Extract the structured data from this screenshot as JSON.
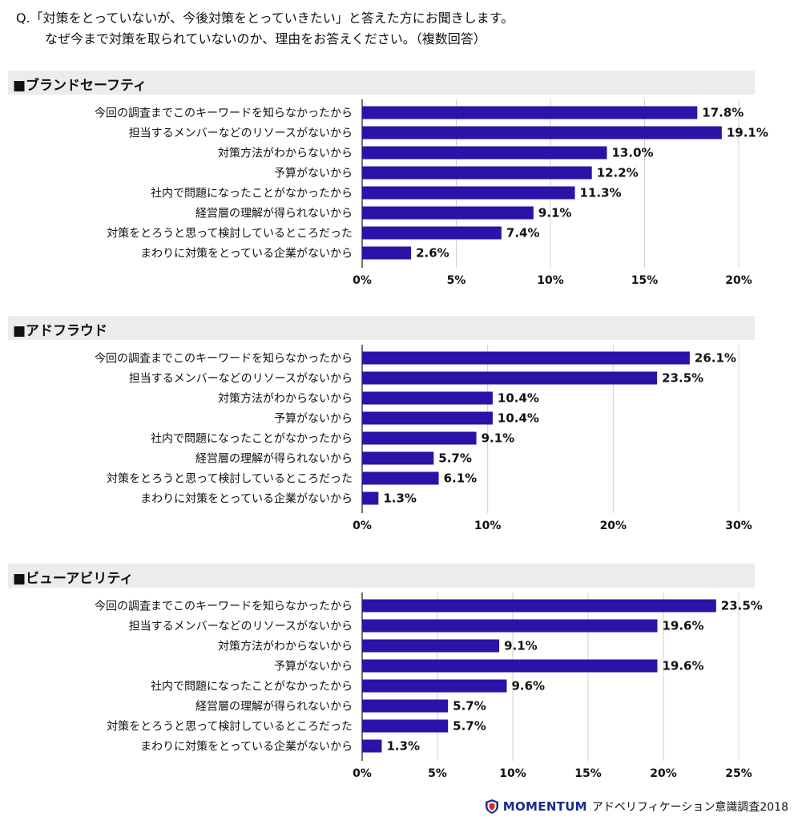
{
  "question": {
    "line1": "Q.「対策をとっていないが、今後対策をとっていきたい」と答えた方にお聞きします。",
    "line2": "なぜ今まで対策を取られていないのか、理由をお答えください。（複数回答）"
  },
  "footer": {
    "brand": "MOMENTUM",
    "text": "アドベリフィケーション意識調査2018",
    "logo_icon": "shield-icon"
  },
  "colors": {
    "bar": "#2a14a8",
    "grid": "#cfcfcf",
    "header_bg": "#ececec"
  },
  "chart_data": [
    {
      "type": "bar",
      "orientation": "horizontal",
      "title": "■ブランドセーフティ",
      "categories": [
        "今回の調査までこのキーワードを知らなかったから",
        "担当するメンバーなどのリソースがないから",
        "対策方法がわからないから",
        "予算がないから",
        "社内で問題になったことがなかったから",
        "経営層の理解が得られないから",
        "対策をとろうと思って検討しているところだった",
        "まわりに対策をとっている企業がないから"
      ],
      "values": [
        17.8,
        19.1,
        13.0,
        12.2,
        11.3,
        9.1,
        7.4,
        2.6
      ],
      "value_labels": [
        "17.8%",
        "19.1%",
        "13.0%",
        "12.2%",
        "11.3%",
        "9.1%",
        "7.4%",
        "2.6%"
      ],
      "xlim": [
        0,
        20
      ],
      "xticks": [
        0,
        5,
        10,
        15,
        20
      ],
      "xtick_labels": [
        "0%",
        "5%",
        "10%",
        "15%",
        "20%"
      ],
      "grid": true
    },
    {
      "type": "bar",
      "orientation": "horizontal",
      "title": "■アドフラウド",
      "categories": [
        "今回の調査までこのキーワードを知らなかったから",
        "担当するメンバーなどのリソースがないから",
        "対策方法がわからないから",
        "予算がないから",
        "社内で問題になったことがなかったから",
        "経営層の理解が得られないから",
        "対策をとろうと思って検討しているところだった",
        "まわりに対策をとっている企業がないから"
      ],
      "values": [
        26.1,
        23.5,
        10.4,
        10.4,
        9.1,
        5.7,
        6.1,
        1.3
      ],
      "value_labels": [
        "26.1%",
        "23.5%",
        "10.4%",
        "10.4%",
        "9.1%",
        "5.7%",
        "6.1%",
        "1.3%"
      ],
      "xlim": [
        0,
        30
      ],
      "xticks": [
        0,
        10,
        20,
        30
      ],
      "xtick_labels": [
        "0%",
        "10%",
        "20%",
        "30%"
      ],
      "grid": true
    },
    {
      "type": "bar",
      "orientation": "horizontal",
      "title": "■ビューアビリティ",
      "categories": [
        "今回の調査までこのキーワードを知らなかったから",
        "担当するメンバーなどのリソースがないから",
        "対策方法がわからないから",
        "予算がないから",
        "社内で問題になったことがなかったから",
        "経営層の理解が得られないから",
        "対策をとろうと思って検討しているところだった",
        "まわりに対策をとっている企業がないから"
      ],
      "values": [
        23.5,
        19.6,
        9.1,
        19.6,
        9.6,
        5.7,
        5.7,
        1.3
      ],
      "value_labels": [
        "23.5%",
        "19.6%",
        "9.1%",
        "19.6%",
        "9.6%",
        "5.7%",
        "5.7%",
        "1.3%"
      ],
      "xlim": [
        0,
        25
      ],
      "xticks": [
        0,
        5,
        10,
        15,
        20,
        25
      ],
      "xtick_labels": [
        "0%",
        "5%",
        "10%",
        "15%",
        "20%",
        "25%"
      ],
      "grid": true
    }
  ]
}
